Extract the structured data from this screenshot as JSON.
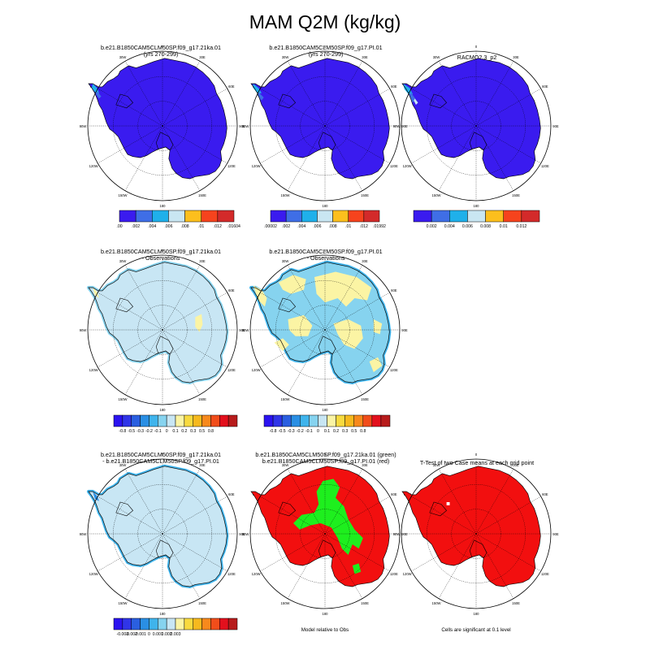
{
  "page": {
    "title": "MAM Q2M (kg/kg)"
  },
  "longitude_labels": [
    "0",
    "30E",
    "60E",
    "90E",
    "120E",
    "150E",
    "180",
    "150W",
    "120W",
    "90W",
    "60W",
    "30W"
  ],
  "colors": {
    "background": "#ffffff",
    "land_mask_fill": "#d9d9d9",
    "abs_scale": [
      "#3a1bef",
      "#3f6ee6",
      "#1fb0ea",
      "#c9e6f2",
      "#fcbf1d",
      "#f6431d",
      "#d32a2a"
    ],
    "diff_scale": [
      "#2b13f0",
      "#3035e8",
      "#2a5fe0",
      "#2a8fe4",
      "#3fb4ec",
      "#86d3ef",
      "#c8e6f4",
      "#fbf4a4",
      "#f8da3f",
      "#f6b91e",
      "#f7891c",
      "#f14d1a",
      "#e3101d",
      "#b71c1c"
    ],
    "model_green": "#1eef1e",
    "model_red": "#f20f0f"
  },
  "panels": {
    "top_left": {
      "title_line1": "b.e21.B1850CAM5CLM50SP.f09_g17.21ka.01",
      "title_line2": "(yrs 270-299)"
    },
    "top_middle": {
      "title_line1": "b.e21.B1850CAM5CLM50SP.f09_g17.PI.01",
      "title_line2": "(yrs 270-299)"
    },
    "top_right": {
      "title_line1": "RACMO2.3_p2",
      "title_line2": ""
    },
    "mid_left": {
      "title_line1": "b.e21.B1850CAM5CLM50SP.f09_g17.21ka.01",
      "title_line2": "- Observations"
    },
    "mid_middle": {
      "title_line1": "b.e21.B1850CAM5CLM50SP.f09_g17.PI.01",
      "title_line2": "- Observations"
    },
    "bot_left": {
      "title_line1": "b.e21.B1850CAM5CLM50SP.f09_g17.21ka.01",
      "title_line2": "- b.e21.B1850CAM5CLM50SP.f09_g17.PI.01"
    },
    "bot_middle": {
      "title_line1": "b.e21.B1850CAM5CLM50SP.f09_g17.21ka.01 (green)",
      "title_line2": "b.e21.B1850CAM5CLM50SP.f09_g17.PI.01 (red)",
      "note": "Model relative to Obs"
    },
    "bot_right": {
      "title_line1": "T-Test of two Case means at each grid point",
      "title_line2": "",
      "note": "Cells are significant at 0.1 level"
    }
  },
  "colorbars": {
    "top_left": {
      "labels": [
        ".00",
        ".002",
        ".004",
        ".006",
        ".008",
        ".01",
        ".012",
        ".01604"
      ]
    },
    "top_middle": {
      "labels": [
        ".00002",
        ".002",
        ".004",
        ".006",
        ".008",
        ".01",
        ".012",
        ".01992"
      ]
    },
    "top_right": {
      "labels": [
        "0.002",
        "0.004",
        "0.006",
        "0.008",
        "0.01",
        "0.012"
      ]
    },
    "mid_left": {
      "labels": [
        "-0.8",
        "-0.5",
        "-0.3",
        "-0.2",
        "-0.1",
        "0",
        "0.1",
        "0.2",
        "0.3",
        "0.5",
        "0.8"
      ]
    },
    "mid_middle": {
      "labels": [
        "-0.8",
        "-0.5",
        "-0.3",
        "-0.2",
        "-0.1",
        "0",
        "0.1",
        "0.2",
        "0.3",
        "0.5",
        "0.8"
      ]
    },
    "bot_left": {
      "labels": [
        "-0.003",
        "-0.002",
        "-0.001",
        "0",
        "0.001",
        "0.002",
        "0.003"
      ]
    }
  },
  "chart_data": [
    {
      "type": "heatmap",
      "panel": "top_left",
      "title": "b.e21.B1850CAM5CLM50SP.f09_g17.21ka.01 (yrs 270-299)",
      "contour_levels": [
        0.0,
        0.002,
        0.004,
        0.006,
        0.008,
        0.01,
        0.012,
        0.01604
      ],
      "dominant_range": [
        0.0,
        0.002
      ]
    },
    {
      "type": "heatmap",
      "panel": "top_middle",
      "title": "b.e21.B1850CAM5CLM50SP.f09_g17.PI.01 (yrs 270-299)",
      "contour_levels": [
        2e-05,
        0.002,
        0.004,
        0.006,
        0.008,
        0.01,
        0.012,
        0.01992
      ],
      "dominant_range": [
        2e-05,
        0.002
      ]
    },
    {
      "type": "heatmap",
      "panel": "top_right",
      "title": "RACMO2.3_p2",
      "contour_levels": [
        0.002,
        0.004,
        0.006,
        0.008,
        0.01,
        0.012
      ],
      "dominant_range": [
        0.0,
        0.002
      ]
    },
    {
      "type": "heatmap",
      "panel": "mid_left",
      "title": "b.e21.B1850CAM5CLM50SP.f09_g17.21ka.01 - Observations",
      "contour_levels": [
        -0.8,
        -0.5,
        -0.3,
        -0.2,
        -0.1,
        0,
        0.1,
        0.2,
        0.3,
        0.5,
        0.8
      ],
      "dominant_range": [
        -0.1,
        0
      ]
    },
    {
      "type": "heatmap",
      "panel": "mid_middle",
      "title": "b.e21.B1850CAM5CLM50SP.f09_g17.PI.01 - Observations",
      "contour_levels": [
        -0.8,
        -0.5,
        -0.3,
        -0.2,
        -0.1,
        0,
        0.1,
        0.2,
        0.3,
        0.5,
        0.8
      ],
      "dominant_range": [
        -0.1,
        0.1
      ]
    },
    {
      "type": "heatmap",
      "panel": "bot_left",
      "title": "b.e21.B1850CAM5CLM50SP.f09_g17.21ka.01 - b.e21.B1850CAM5CLM50SP.f09_g17.PI.01",
      "contour_levels": [
        -0.003,
        -0.002,
        -0.001,
        0,
        0.001,
        0.002,
        0.003
      ],
      "dominant_range": [
        -0.001,
        0
      ]
    },
    {
      "type": "heatmap",
      "panel": "bot_middle",
      "title": "b.e21.B1850CAM5CLM50SP.f09_g17.21ka.01 (green) b.e21.B1850CAM5CLM50SP.f09_g17.PI.01 (red)",
      "note": "Model relative to Obs",
      "categories": [
        "21ka.01 closer (green)",
        "PI.01 closer (red)"
      ]
    },
    {
      "type": "heatmap",
      "panel": "bot_right",
      "title": "T-Test of two Case means at each grid point",
      "note": "Cells are significant at 0.1 level"
    }
  ]
}
